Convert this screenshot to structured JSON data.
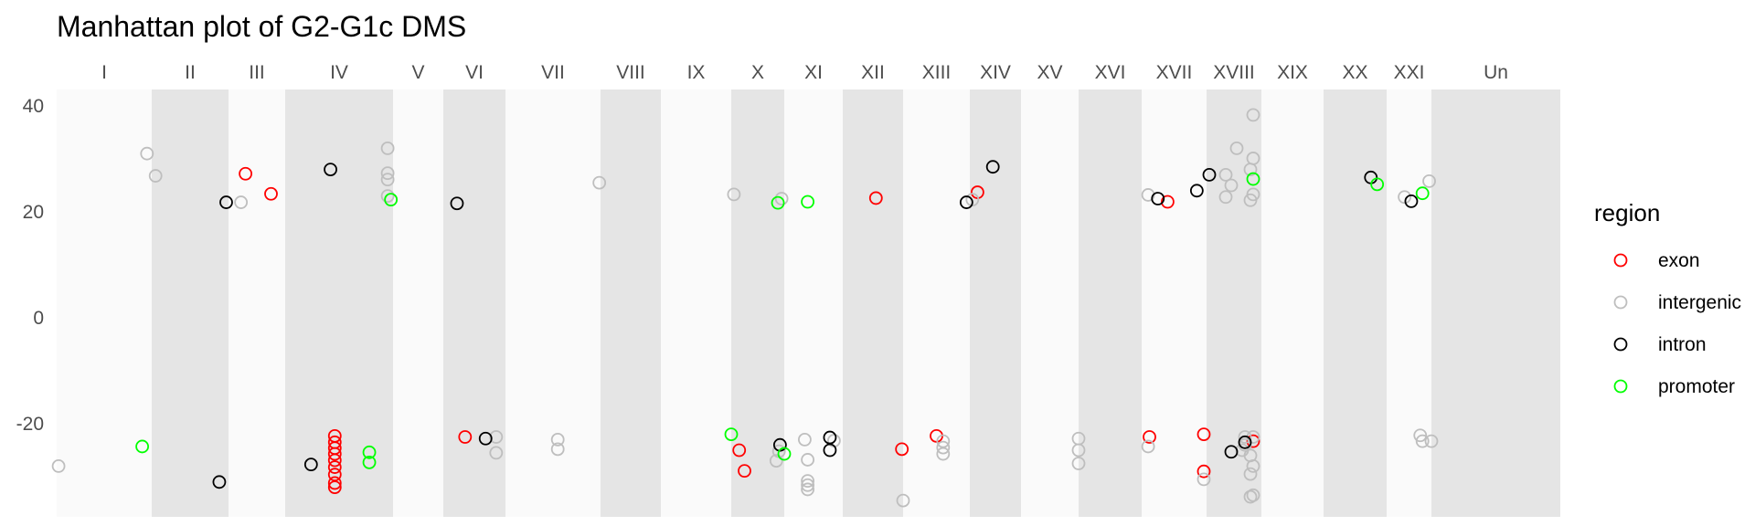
{
  "chart_data": {
    "type": "scatter",
    "title": "Manhattan plot of G2-G1c DMS",
    "xlabel": "",
    "ylabel": "",
    "ylim": [
      -38,
      43
    ],
    "yticks": [
      -20,
      0,
      20,
      40
    ],
    "grid": false,
    "legend_position": "right",
    "legend_title": "region",
    "colors": {
      "exon": "#ff0000",
      "intergenic": "#bebebe",
      "intron": "#000000",
      "promoter": "#00ff00"
    },
    "chromosomes": [
      "I",
      "II",
      "III",
      "IV",
      "V",
      "VI",
      "VII",
      "VIII",
      "IX",
      "X",
      "XI",
      "XII",
      "XIII",
      "XIV",
      "XV",
      "XVI",
      "XVII",
      "XVIII",
      "XIX",
      "XX",
      "XXI",
      "Un"
    ],
    "series": [
      {
        "name": "exon",
        "points": [
          [
            "III",
            0.3,
            27.2
          ],
          [
            "III",
            0.75,
            23.4
          ],
          [
            "IV",
            0.46,
            -22.3
          ],
          [
            "IV",
            0.46,
            -23.5
          ],
          [
            "IV",
            0.46,
            -24.6
          ],
          [
            "IV",
            0.46,
            -25.7
          ],
          [
            "IV",
            0.46,
            -26.9
          ],
          [
            "IV",
            0.46,
            -28.2
          ],
          [
            "IV",
            0.46,
            -29.6
          ],
          [
            "IV",
            0.46,
            -31.2
          ],
          [
            "IV",
            0.46,
            -32.0
          ],
          [
            "VI",
            0.35,
            -22.5
          ],
          [
            "X",
            0.15,
            -25.0
          ],
          [
            "X",
            0.25,
            -28.9
          ],
          [
            "XII",
            0.55,
            22.6
          ],
          [
            "XII",
            0.98,
            -24.8
          ],
          [
            "XIII",
            0.5,
            -22.3
          ],
          [
            "XIV",
            0.15,
            23.7
          ],
          [
            "XVII",
            0.12,
            -22.5
          ],
          [
            "XVII",
            0.4,
            21.9
          ],
          [
            "XVIII",
            -0.05,
            -22.0
          ],
          [
            "XVIII",
            -0.05,
            -29.0
          ],
          [
            "XVIII",
            0.85,
            -23.3
          ]
        ]
      },
      {
        "name": "intergenic",
        "points": [
          [
            "I",
            0.02,
            -28.0
          ],
          [
            "I",
            0.95,
            31.0
          ],
          [
            "II",
            0.05,
            26.8
          ],
          [
            "III",
            0.22,
            21.8
          ],
          [
            "IV",
            0.95,
            32.0
          ],
          [
            "IV",
            0.95,
            27.3
          ],
          [
            "IV",
            0.95,
            26.1
          ],
          [
            "IV",
            0.95,
            23.0
          ],
          [
            "IV",
            0.98,
            22.3
          ],
          [
            "VI",
            0.85,
            -22.5
          ],
          [
            "VI",
            0.85,
            -25.5
          ],
          [
            "VII",
            0.55,
            -23.0
          ],
          [
            "VII",
            0.55,
            -24.8
          ],
          [
            "VIII",
            -0.02,
            25.5
          ],
          [
            "X",
            0.05,
            23.3
          ],
          [
            "X",
            0.85,
            -27.0
          ],
          [
            "X",
            0.9,
            -25.2
          ],
          [
            "X",
            0.95,
            22.5
          ],
          [
            "XI",
            0.35,
            -23.0
          ],
          [
            "XI",
            0.4,
            -26.8
          ],
          [
            "XI",
            0.4,
            -30.8
          ],
          [
            "XI",
            0.4,
            -31.6
          ],
          [
            "XI",
            0.4,
            -32.4
          ],
          [
            "XI",
            0.85,
            -23.2
          ],
          [
            "XII",
            1.0,
            -34.5
          ],
          [
            "XIII",
            0.6,
            -23.3
          ],
          [
            "XIII",
            0.6,
            -24.5
          ],
          [
            "XIII",
            0.6,
            -25.7
          ],
          [
            "XIV",
            0.05,
            22.3
          ],
          [
            "XVI",
            0.0,
            -22.8
          ],
          [
            "XVI",
            0.0,
            -25.0
          ],
          [
            "XVI",
            0.0,
            -27.5
          ],
          [
            "XVII",
            0.1,
            23.2
          ],
          [
            "XVII",
            0.1,
            -24.3
          ],
          [
            "XVIII",
            -0.05,
            -30.5
          ],
          [
            "XVIII",
            0.35,
            27.0
          ],
          [
            "XVIII",
            0.45,
            25.0
          ],
          [
            "XVIII",
            0.35,
            22.8
          ],
          [
            "XVIII",
            0.55,
            32.0
          ],
          [
            "XVIII",
            0.7,
            -24.0
          ],
          [
            "XVIII",
            0.7,
            -22.5
          ],
          [
            "XVIII",
            0.65,
            -25.0
          ],
          [
            "XVIII",
            0.85,
            38.3
          ],
          [
            "XVIII",
            0.85,
            30.1
          ],
          [
            "XVIII",
            0.8,
            28.0
          ],
          [
            "XVIII",
            0.85,
            23.3
          ],
          [
            "XVIII",
            0.8,
            22.2
          ],
          [
            "XVIII",
            0.85,
            -22.5
          ],
          [
            "XVIII",
            0.8,
            -26.0
          ],
          [
            "XVIII",
            0.85,
            -28.0
          ],
          [
            "XVIII",
            0.8,
            -29.5
          ],
          [
            "XVIII",
            0.85,
            -33.5
          ],
          [
            "XVIII",
            0.8,
            -33.8
          ],
          [
            "XXI",
            0.4,
            22.8
          ],
          [
            "XXI",
            0.95,
            25.8
          ],
          [
            "XXI",
            0.75,
            -22.2
          ],
          [
            "XXI",
            0.8,
            -23.3
          ],
          [
            "XXI",
            1.0,
            -23.3
          ]
        ]
      },
      {
        "name": "intron",
        "points": [
          [
            "II",
            0.97,
            21.8
          ],
          [
            "II",
            0.88,
            -31.0
          ],
          [
            "IV",
            0.42,
            28.0
          ],
          [
            "IV",
            0.24,
            -27.7
          ],
          [
            "VI",
            0.22,
            21.6
          ],
          [
            "VI",
            0.68,
            -22.8
          ],
          [
            "X",
            0.92,
            -24.0
          ],
          [
            "XI",
            0.78,
            -22.6
          ],
          [
            "XI",
            0.78,
            -25.0
          ],
          [
            "XIII",
            0.95,
            21.8
          ],
          [
            "XIV",
            0.45,
            28.5
          ],
          [
            "XVII",
            0.25,
            22.5
          ],
          [
            "XVII",
            0.85,
            24.0
          ],
          [
            "XVIII",
            0.05,
            27.0
          ],
          [
            "XVIII",
            0.45,
            -25.3
          ],
          [
            "XVIII",
            0.7,
            -23.5
          ],
          [
            "XX",
            0.75,
            26.5
          ],
          [
            "XXI",
            0.55,
            22.0
          ]
        ]
      },
      {
        "name": "promoter",
        "points": [
          [
            "I",
            0.9,
            -24.3
          ],
          [
            "IV",
            0.98,
            22.3
          ],
          [
            "IV",
            0.78,
            -25.4
          ],
          [
            "IV",
            0.78,
            -27.3
          ],
          [
            "X",
            0.0,
            -22.0
          ],
          [
            "X",
            0.88,
            21.7
          ],
          [
            "X",
            1.0,
            -25.7
          ],
          [
            "XI",
            0.4,
            21.9
          ],
          [
            "XVIII",
            0.85,
            26.2
          ],
          [
            "XX",
            0.85,
            25.2
          ],
          [
            "XXI",
            0.8,
            23.5
          ]
        ]
      }
    ]
  }
}
